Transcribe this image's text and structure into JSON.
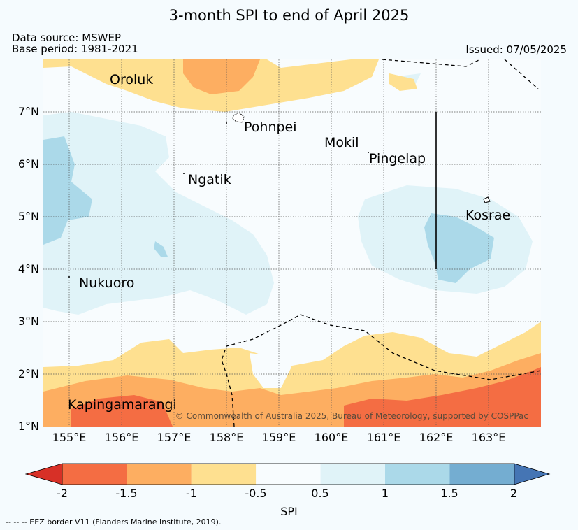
{
  "title": "3-month SPI to end of April 2025",
  "data_source": "Data source: MSWEP",
  "base_period": "Base period: 1981-2021",
  "issued": "Issued: 07/05/2025",
  "copyright": "© Commonwealth of Australia 2025, Bureau of Meteorology, supported by COSPPac",
  "places": [
    "Oroluk",
    "Pohnpei",
    "Mokil",
    "Pingelap",
    "Ngatik",
    "Kosrae",
    "Nukuoro",
    "Kapingamarangi"
  ],
  "lat_labels": [
    "7°N",
    "6°N",
    "5°N",
    "4°N",
    "3°N",
    "2°N",
    "1°N"
  ],
  "lon_labels": [
    "155°E",
    "156°E",
    "157°E",
    "158°E",
    "159°E",
    "160°E",
    "161°E",
    "162°E",
    "163°E"
  ],
  "colorbar": {
    "ticks": [
      "-2",
      "-1.5",
      "-1",
      "-0.5",
      "0.5",
      "1",
      "1.5",
      "2"
    ],
    "label": "SPI",
    "colors": [
      "#d73027",
      "#f46d43",
      "#fdae61",
      "#fee090",
      "#f8fcfe",
      "#e0f3f8",
      "#abd9e9",
      "#74add1",
      "#4575b4"
    ]
  },
  "eez_note": "--  --  -- EEZ border V11 (Flanders Marine Institute, 2019)."
}
